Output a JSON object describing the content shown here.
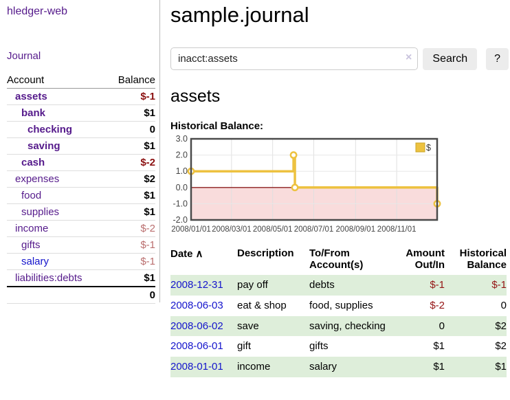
{
  "app": {
    "title": "hledger-web"
  },
  "nav": {
    "journal_label": "Journal"
  },
  "sidebar": {
    "account_header": "Account",
    "balance_header": "Balance",
    "rows": [
      {
        "name": "assets",
        "depth": 1,
        "balance": "$-1",
        "in_query": true,
        "blue": false
      },
      {
        "name": "bank",
        "depth": 2,
        "balance": "$1",
        "in_query": true,
        "blue": false
      },
      {
        "name": "checking",
        "depth": 3,
        "balance": "0",
        "in_query": true,
        "blue": false
      },
      {
        "name": "saving",
        "depth": 3,
        "balance": "$1",
        "in_query": true,
        "blue": false
      },
      {
        "name": "cash",
        "depth": 2,
        "balance": "$-2",
        "in_query": true,
        "blue": false
      },
      {
        "name": "expenses",
        "depth": 1,
        "balance": "$2",
        "in_query": false,
        "blue": false
      },
      {
        "name": "food",
        "depth": 2,
        "balance": "$1",
        "in_query": false,
        "blue": false
      },
      {
        "name": "supplies",
        "depth": 2,
        "balance": "$1",
        "in_query": false,
        "blue": false
      },
      {
        "name": "income",
        "depth": 1,
        "balance": "$-2",
        "in_query": false,
        "blue": false
      },
      {
        "name": "gifts",
        "depth": 2,
        "balance": "$-1",
        "in_query": false,
        "blue": false
      },
      {
        "name": "salary",
        "depth": 2,
        "balance": "$-1",
        "in_query": false,
        "blue": true
      },
      {
        "name": "liabilities:debts",
        "depth": 1,
        "balance": "$1",
        "in_query": false,
        "blue": false
      }
    ],
    "total": "0"
  },
  "header": {
    "title": "sample.journal"
  },
  "search": {
    "value": "inacct:assets",
    "clear_icon": "×",
    "button_label": "Search",
    "help_label": "?"
  },
  "account_page": {
    "title": "assets",
    "chart_heading": "Historical Balance:"
  },
  "chart_data": {
    "type": "line",
    "title": "Historical Balance",
    "step": true,
    "series": [
      {
        "name": "$",
        "color": "#edc240",
        "points": [
          [
            "2008-01-01",
            1
          ],
          [
            "2008-06-01",
            2
          ],
          [
            "2008-06-03",
            0
          ],
          [
            "2008-12-31",
            -1
          ]
        ]
      }
    ],
    "x_ticks": [
      "2008/01/01",
      "2008/03/01",
      "2008/05/01",
      "2008/07/01",
      "2008/09/01",
      "2008/11/01"
    ],
    "y_ticks": [
      3.0,
      2.0,
      1.0,
      0.0,
      -1.0,
      -2.0
    ],
    "ylim": [
      -2,
      3
    ],
    "xlim": [
      "2008-01-01",
      "2008-12-31"
    ],
    "legend": {
      "label": "$",
      "position": "top-right"
    },
    "negative_region_fill": "#f9dcdc",
    "zero_line_color": "#8b1e1e",
    "grid": true
  },
  "register": {
    "headers": {
      "date": "Date",
      "sort_indicator": "∧",
      "description": "Description",
      "accounts": "To/From Account(s)",
      "amount": "Amount Out/In",
      "balance": "Historical Balance"
    },
    "rows": [
      {
        "date": "2008-12-31",
        "description": "pay off",
        "accounts": "debts",
        "amount": "$-1",
        "balance": "$-1"
      },
      {
        "date": "2008-06-03",
        "description": "eat & shop",
        "accounts": "food, supplies",
        "amount": "$-2",
        "balance": "0"
      },
      {
        "date": "2008-06-02",
        "description": "save",
        "accounts": "saving, checking",
        "amount": "0",
        "balance": "$2"
      },
      {
        "date": "2008-06-01",
        "description": "gift",
        "accounts": "gifts",
        "amount": "$1",
        "balance": "$2"
      },
      {
        "date": "2008-01-01",
        "description": "income",
        "accounts": "salary",
        "amount": "$1",
        "balance": "$1"
      }
    ]
  }
}
